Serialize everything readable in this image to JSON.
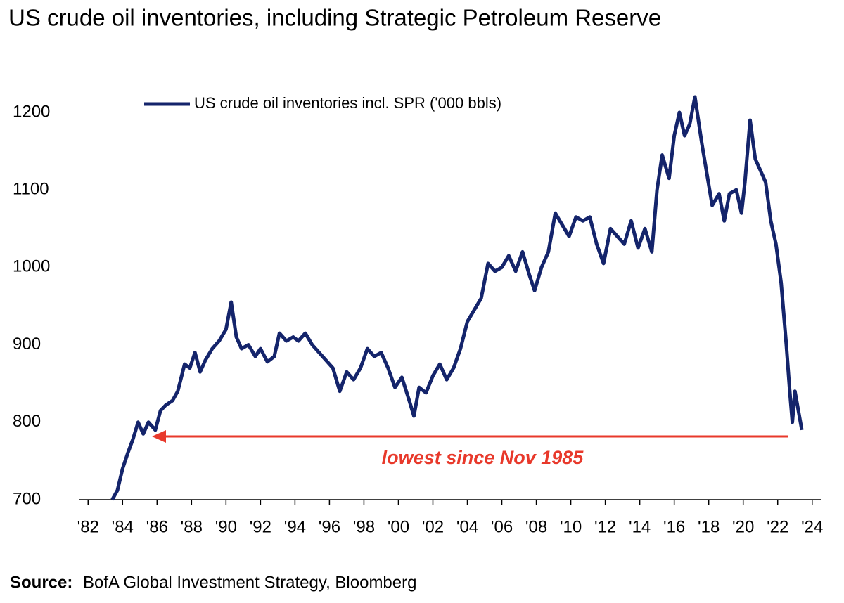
{
  "chart_data": {
    "type": "line",
    "title": "US crude oil inventories, including Strategic Petroleum Reserve",
    "annotation": "lowest since Nov 1985",
    "source_label": "Source:",
    "source": "BofA Global Investment Strategy, Bloomberg",
    "legend": "top-left",
    "grid": false,
    "xlim": [
      1981.5,
      2024.5
    ],
    "xticks": [
      {
        "value": 1982,
        "label": "'82"
      },
      {
        "value": 1984,
        "label": "'84"
      },
      {
        "value": 1986,
        "label": "'86"
      },
      {
        "value": 1988,
        "label": "'88"
      },
      {
        "value": 1990,
        "label": "'90"
      },
      {
        "value": 1992,
        "label": "'92"
      },
      {
        "value": 1994,
        "label": "'94"
      },
      {
        "value": 1996,
        "label": "'96"
      },
      {
        "value": 1998,
        "label": "'98"
      },
      {
        "value": 2000,
        "label": "'00"
      },
      {
        "value": 2002,
        "label": "'02"
      },
      {
        "value": 2004,
        "label": "'04"
      },
      {
        "value": 2006,
        "label": "'06"
      },
      {
        "value": 2008,
        "label": "'08"
      },
      {
        "value": 2010,
        "label": "'10"
      },
      {
        "value": 2012,
        "label": "'12"
      },
      {
        "value": 2014,
        "label": "'14"
      },
      {
        "value": 2016,
        "label": "'16"
      },
      {
        "value": 2018,
        "label": "'18"
      },
      {
        "value": 2020,
        "label": "'20"
      },
      {
        "value": 2022,
        "label": "'22"
      },
      {
        "value": 2024,
        "label": "'24"
      }
    ],
    "ylim": [
      700,
      1200
    ],
    "yticks": [
      700,
      800,
      900,
      1000,
      1100,
      1200
    ],
    "x": [
      1983.4,
      1983.7,
      1984.0,
      1984.3,
      1984.6,
      1984.9,
      1985.2,
      1985.5,
      1985.9,
      1986.2,
      1986.5,
      1986.9,
      1987.2,
      1987.6,
      1987.9,
      1988.2,
      1988.5,
      1988.8,
      1989.2,
      1989.6,
      1990.0,
      1990.3,
      1990.6,
      1990.9,
      1991.3,
      1991.7,
      1992.0,
      1992.4,
      1992.8,
      1993.1,
      1993.5,
      1993.9,
      1994.2,
      1994.6,
      1995.0,
      1995.4,
      1995.8,
      1996.2,
      1996.6,
      1997.0,
      1997.4,
      1997.8,
      1998.2,
      1998.6,
      1999.0,
      1999.4,
      1999.8,
      2000.2,
      2000.6,
      2000.9,
      2001.2,
      2001.6,
      2002.0,
      2002.4,
      2002.8,
      2003.2,
      2003.6,
      2004.0,
      2004.4,
      2004.8,
      2005.2,
      2005.6,
      2006.0,
      2006.4,
      2006.8,
      2007.2,
      2007.6,
      2007.9,
      2008.3,
      2008.7,
      2009.1,
      2009.5,
      2009.9,
      2010.3,
      2010.7,
      2011.1,
      2011.5,
      2011.9,
      2012.3,
      2012.7,
      2013.1,
      2013.5,
      2013.9,
      2014.3,
      2014.7,
      2015.0,
      2015.3,
      2015.7,
      2016.0,
      2016.3,
      2016.6,
      2016.9,
      2017.2,
      2017.6,
      2017.9,
      2018.2,
      2018.6,
      2018.9,
      2019.2,
      2019.6,
      2019.9,
      2020.1,
      2020.4,
      2020.7,
      2021.0,
      2021.3,
      2021.6,
      2021.9,
      2022.2,
      2022.5,
      2022.7,
      2022.85,
      2023.0,
      2023.2,
      2023.4
    ],
    "series": [
      {
        "name": "US crude oil inventories incl. SPR ('000 bbls)",
        "color": "#14246b",
        "values": [
          700,
          712,
          740,
          760,
          778,
          800,
          785,
          800,
          790,
          815,
          822,
          828,
          840,
          875,
          870,
          890,
          865,
          880,
          895,
          905,
          920,
          955,
          910,
          895,
          900,
          885,
          895,
          878,
          885,
          915,
          905,
          910,
          905,
          915,
          900,
          890,
          880,
          870,
          840,
          865,
          855,
          870,
          895,
          885,
          890,
          870,
          845,
          858,
          830,
          808,
          845,
          838,
          860,
          875,
          855,
          870,
          895,
          930,
          945,
          960,
          1005,
          995,
          1000,
          1015,
          995,
          1020,
          990,
          970,
          1000,
          1020,
          1070,
          1055,
          1040,
          1065,
          1060,
          1065,
          1030,
          1005,
          1050,
          1040,
          1030,
          1060,
          1025,
          1050,
          1020,
          1100,
          1145,
          1115,
          1170,
          1200,
          1170,
          1185,
          1220,
          1160,
          1120,
          1080,
          1095,
          1060,
          1095,
          1100,
          1070,
          1110,
          1190,
          1140,
          1125,
          1110,
          1060,
          1030,
          980,
          900,
          840,
          800,
          840,
          815,
          790
        ]
      }
    ]
  }
}
